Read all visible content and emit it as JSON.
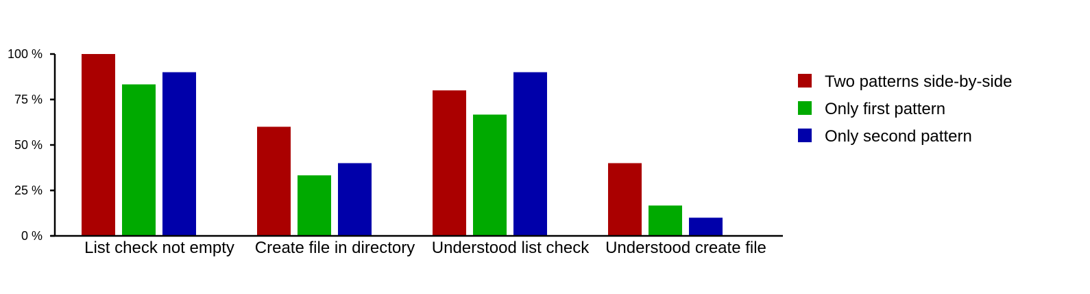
{
  "chart_data": {
    "type": "bar",
    "categories": [
      "List check not empty",
      "Create file in directory",
      "Understood list check",
      "Understood create file"
    ],
    "series": [
      {
        "name": "Two patterns side-by-side",
        "color": "#aa0000",
        "values": [
          100,
          60,
          80,
          40
        ]
      },
      {
        "name": "Only first pattern",
        "color": "#00aa00",
        "values": [
          83.3,
          33.3,
          66.7,
          16.7
        ]
      },
      {
        "name": "Only second pattern",
        "color": "#0000aa",
        "values": [
          90,
          40,
          90,
          10
        ]
      }
    ],
    "yticks": [
      0,
      25,
      50,
      75,
      100
    ],
    "ytick_labels": [
      "0 %",
      "25 %",
      "50 %",
      "75 %",
      "100 %"
    ],
    "ylim": [
      0,
      100
    ],
    "grid": false,
    "legend_position": "right",
    "title": "",
    "xlabel": "",
    "ylabel": ""
  }
}
